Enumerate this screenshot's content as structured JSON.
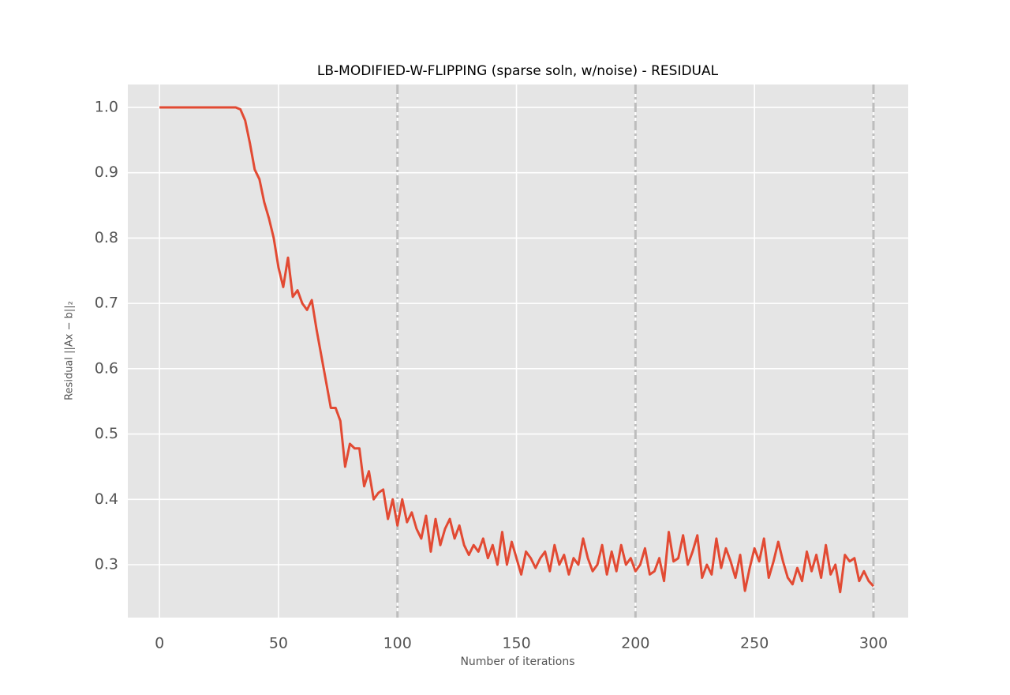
{
  "chart_data": {
    "type": "line",
    "title": "LB-MODIFIED-W-FLIPPING (sparse soln, w/noise) - RESIDUAL",
    "x_label": "Number of iterations",
    "y_label": "Residual ||Ax − b||₂",
    "x": [
      0,
      2,
      4,
      6,
      8,
      10,
      12,
      14,
      16,
      18,
      20,
      22,
      24,
      26,
      28,
      30,
      32,
      34,
      36,
      38,
      40,
      42,
      44,
      46,
      48,
      50,
      52,
      54,
      56,
      58,
      60,
      62,
      64,
      66,
      68,
      70,
      72,
      74,
      76,
      78,
      80,
      82,
      84,
      86,
      88,
      90,
      92,
      94,
      96,
      98,
      100,
      102,
      104,
      106,
      108,
      110,
      112,
      114,
      116,
      118,
      120,
      122,
      124,
      126,
      128,
      130,
      132,
      134,
      136,
      138,
      140,
      142,
      144,
      146,
      148,
      150,
      152,
      154,
      156,
      158,
      160,
      162,
      164,
      166,
      168,
      170,
      172,
      174,
      176,
      178,
      180,
      182,
      184,
      186,
      188,
      190,
      192,
      194,
      196,
      198,
      200,
      202,
      204,
      206,
      208,
      210,
      212,
      214,
      216,
      218,
      220,
      222,
      224,
      226,
      228,
      230,
      232,
      234,
      236,
      238,
      240,
      242,
      244,
      246,
      248,
      250,
      252,
      254,
      256,
      258,
      260,
      262,
      264,
      266,
      268,
      270,
      272,
      274,
      276,
      278,
      280,
      282,
      284,
      286,
      288,
      290,
      292,
      294,
      296,
      298,
      300
    ],
    "series": [
      {
        "name": "residual",
        "color": "#e24a33",
        "values": [
          1.0,
          1.0,
          1.0,
          1.0,
          1.0,
          1.0,
          1.0,
          1.0,
          1.0,
          1.0,
          1.0,
          1.0,
          1.0,
          1.0,
          1.0,
          1.0,
          1.0,
          0.997,
          0.98,
          0.945,
          0.905,
          0.89,
          0.855,
          0.83,
          0.8,
          0.755,
          0.725,
          0.77,
          0.71,
          0.72,
          0.7,
          0.69,
          0.705,
          0.66,
          0.62,
          0.58,
          0.54,
          0.54,
          0.52,
          0.45,
          0.485,
          0.478,
          0.478,
          0.42,
          0.443,
          0.4,
          0.41,
          0.415,
          0.37,
          0.4,
          0.36,
          0.4,
          0.365,
          0.38,
          0.355,
          0.34,
          0.375,
          0.32,
          0.37,
          0.33,
          0.355,
          0.37,
          0.34,
          0.36,
          0.33,
          0.315,
          0.33,
          0.32,
          0.34,
          0.31,
          0.33,
          0.3,
          0.35,
          0.3,
          0.335,
          0.31,
          0.285,
          0.32,
          0.31,
          0.295,
          0.31,
          0.32,
          0.29,
          0.33,
          0.3,
          0.315,
          0.285,
          0.31,
          0.3,
          0.34,
          0.31,
          0.29,
          0.3,
          0.33,
          0.285,
          0.32,
          0.29,
          0.33,
          0.3,
          0.31,
          0.29,
          0.3,
          0.325,
          0.285,
          0.29,
          0.31,
          0.275,
          0.35,
          0.305,
          0.31,
          0.345,
          0.3,
          0.32,
          0.345,
          0.28,
          0.3,
          0.285,
          0.34,
          0.295,
          0.325,
          0.305,
          0.28,
          0.315,
          0.26,
          0.295,
          0.325,
          0.305,
          0.34,
          0.28,
          0.305,
          0.335,
          0.305,
          0.28,
          0.27,
          0.295,
          0.275,
          0.32,
          0.29,
          0.315,
          0.28,
          0.33,
          0.285,
          0.3,
          0.258,
          0.315,
          0.305,
          0.31,
          0.275,
          0.29,
          0.275,
          0.267
        ]
      }
    ],
    "vlines": [
      100,
      200,
      300
    ],
    "xlim": [
      -13.3,
      314.6
    ],
    "ylim": [
      0.219,
      1.035
    ],
    "xticks": [
      0,
      50,
      100,
      150,
      200,
      250,
      300
    ],
    "yticks": [
      0.3,
      0.4,
      0.5,
      0.6,
      0.7,
      0.8,
      0.9,
      {
        "value": 1.0,
        "label": "1.0"
      }
    ],
    "grid": true
  }
}
